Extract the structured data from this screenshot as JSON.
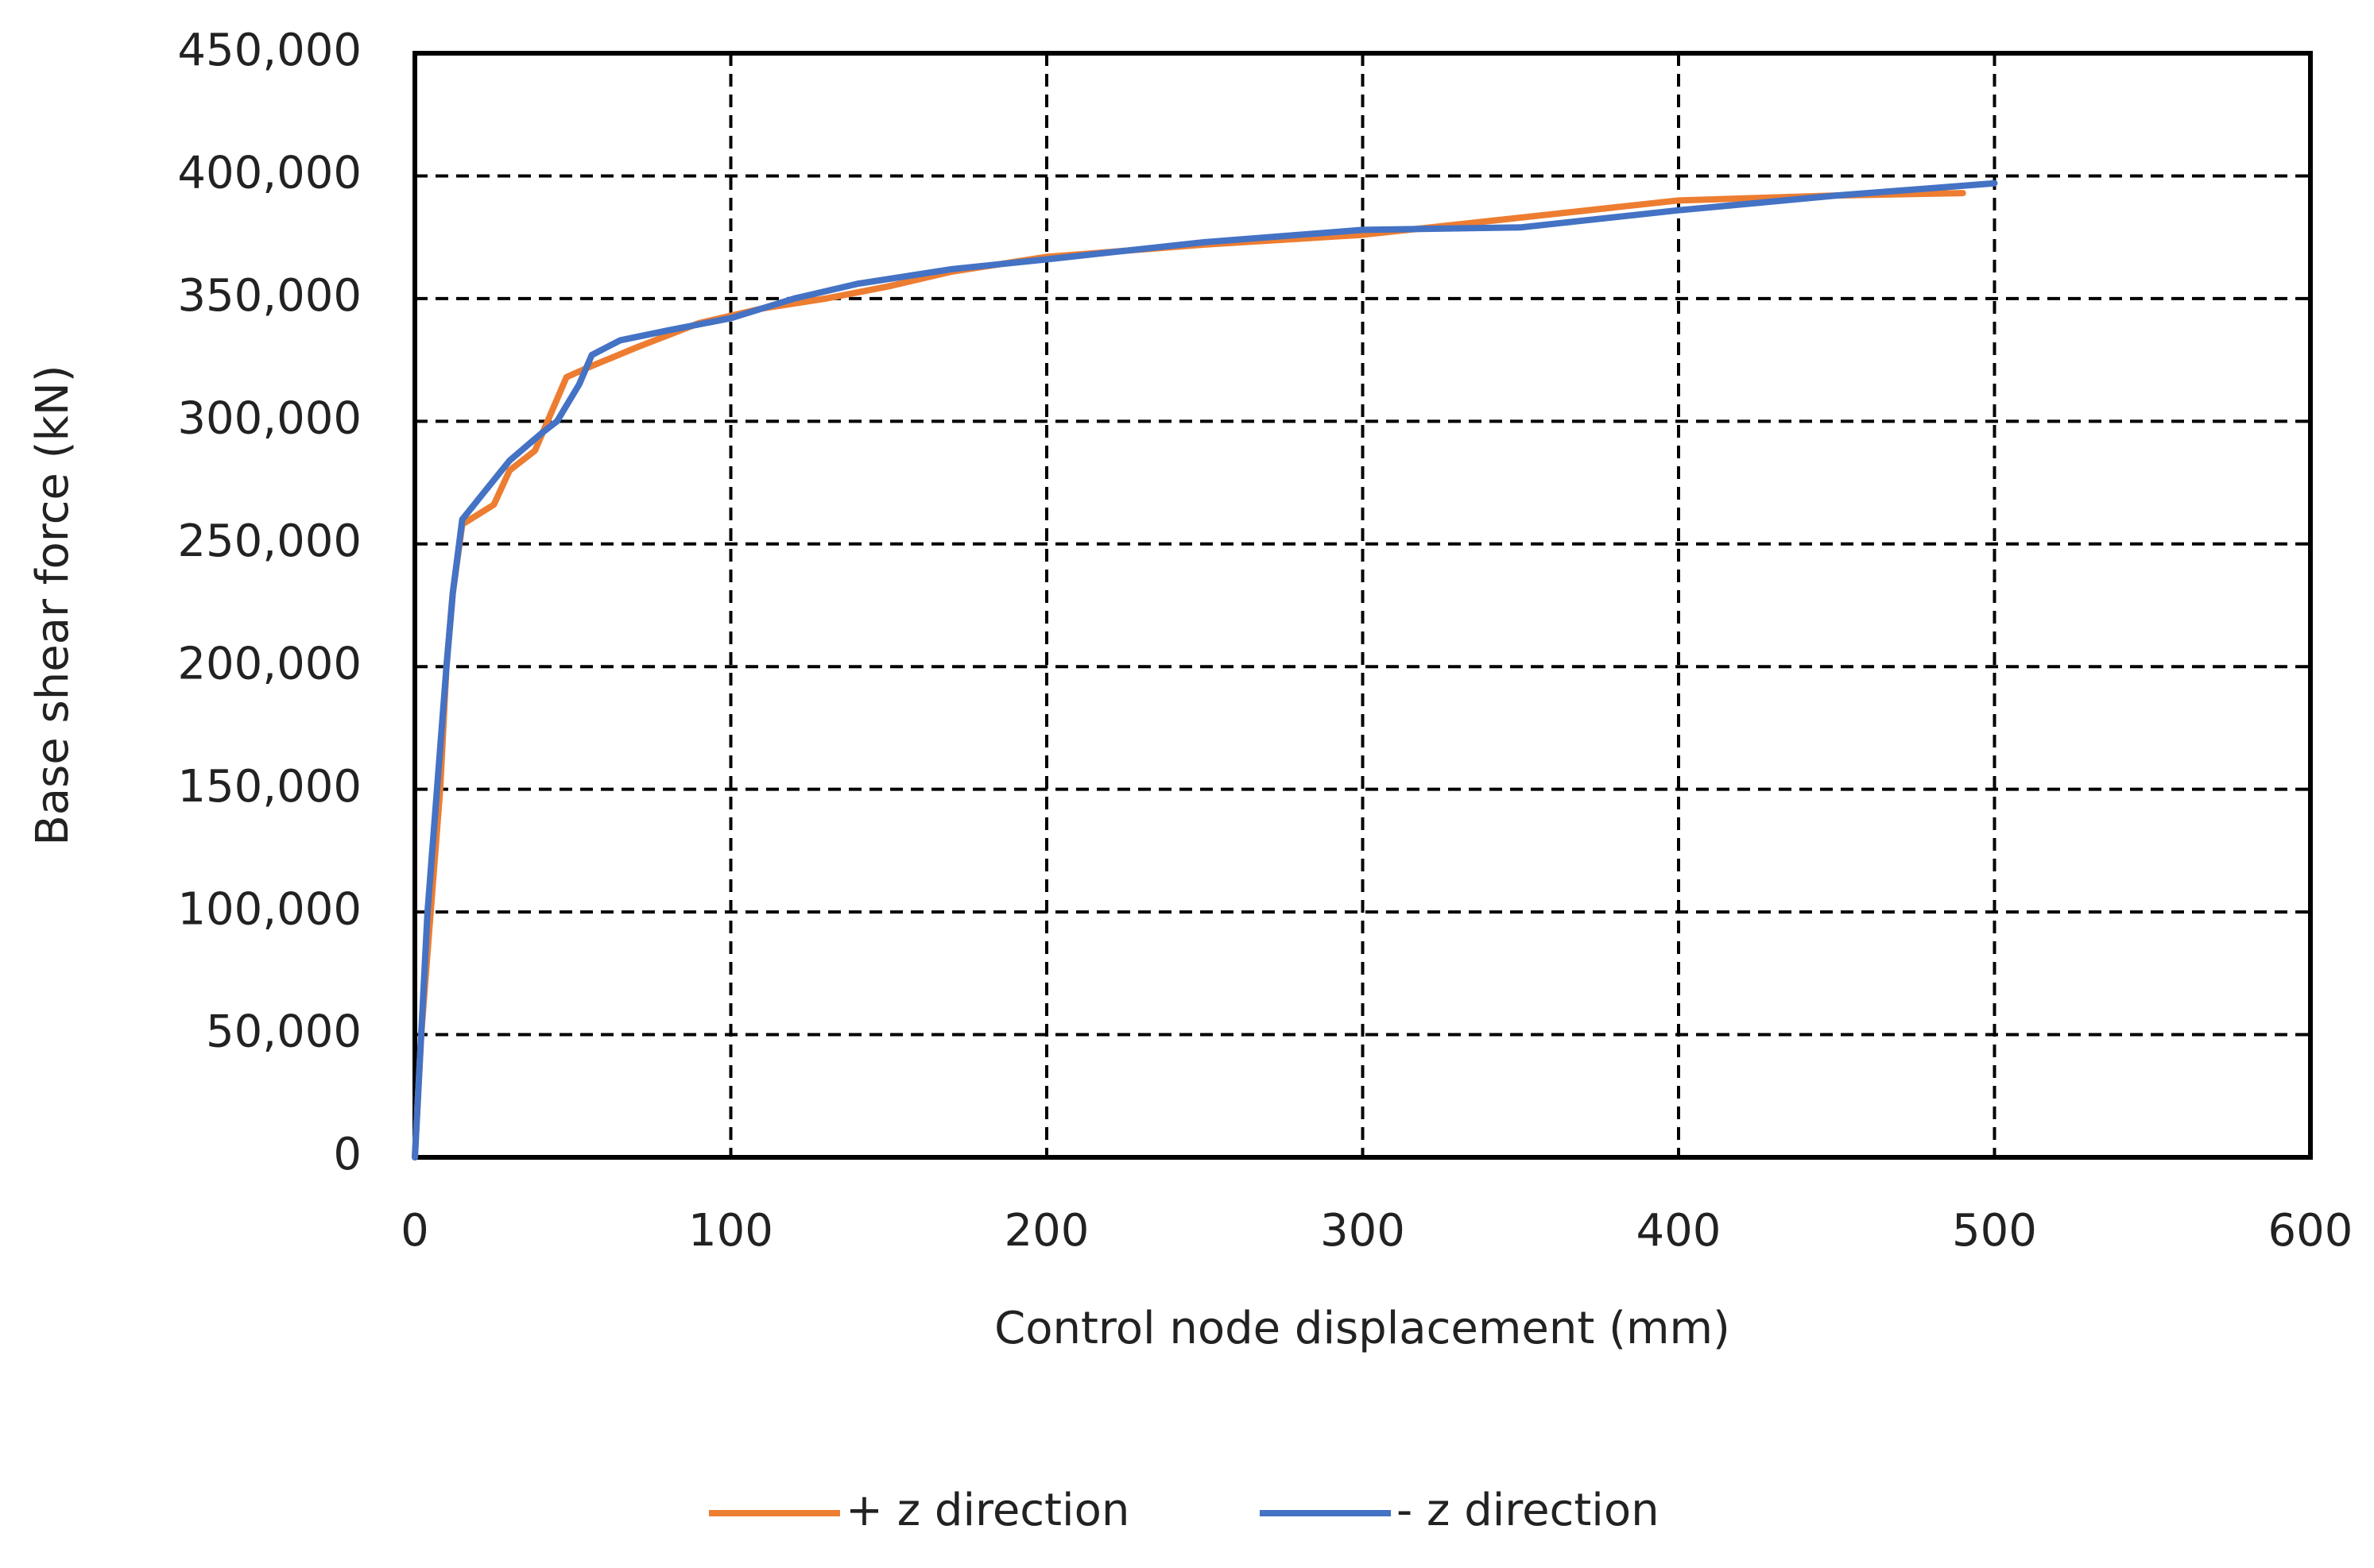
{
  "chart_data": {
    "type": "line",
    "xlabel": "Control node displacement (mm)",
    "ylabel": "Base shear force (kN)",
    "xlim": [
      0,
      600
    ],
    "xticks": [
      0,
      100,
      200,
      300,
      400,
      500,
      600
    ],
    "ylim": [
      0,
      450000
    ],
    "yticks": [
      0,
      {
        "value": 50000,
        "label": "50,000"
      },
      {
        "value": 100000,
        "label": "100,000"
      },
      {
        "value": 150000,
        "label": "150,000"
      },
      {
        "value": 200000,
        "label": "200,000"
      },
      {
        "value": 250000,
        "label": "250,000"
      },
      {
        "value": 300000,
        "label": "300,000"
      },
      {
        "value": 350000,
        "label": "350,000"
      },
      {
        "value": 400000,
        "label": "400,000"
      },
      {
        "value": 450000,
        "label": "450,000"
      }
    ],
    "grid": true,
    "legend": "bottom",
    "series": [
      {
        "name": "+ z direction",
        "color": "#ed7d31",
        "x": [
          0,
          2,
          5,
          8,
          10,
          12,
          15,
          20,
          25,
          30,
          38,
          42,
          48,
          55,
          70,
          90,
          110,
          130,
          150,
          170,
          200,
          250,
          300,
          350,
          400,
          450,
          490
        ],
        "values": [
          0,
          50000,
          100000,
          150000,
          200000,
          230000,
          258000,
          262000,
          266000,
          280000,
          288000,
          300000,
          318000,
          322000,
          330000,
          340000,
          346000,
          350000,
          355000,
          361000,
          367000,
          372000,
          376000,
          383000,
          390000,
          392000,
          393000
        ]
      },
      {
        "name": "- z direction",
        "color": "#4472c4",
        "x": [
          0,
          2,
          4,
          7,
          10,
          12,
          15,
          20,
          30,
          40,
          45,
          52,
          56,
          65,
          80,
          100,
          120,
          140,
          170,
          200,
          250,
          300,
          350,
          400,
          450,
          500
        ],
        "values": [
          0,
          50000,
          100000,
          150000,
          200000,
          230000,
          260000,
          268000,
          284000,
          295000,
          300000,
          315000,
          327000,
          333000,
          337000,
          342000,
          350000,
          356000,
          362000,
          366000,
          373000,
          378000,
          379000,
          386000,
          392000,
          397000
        ]
      }
    ]
  }
}
